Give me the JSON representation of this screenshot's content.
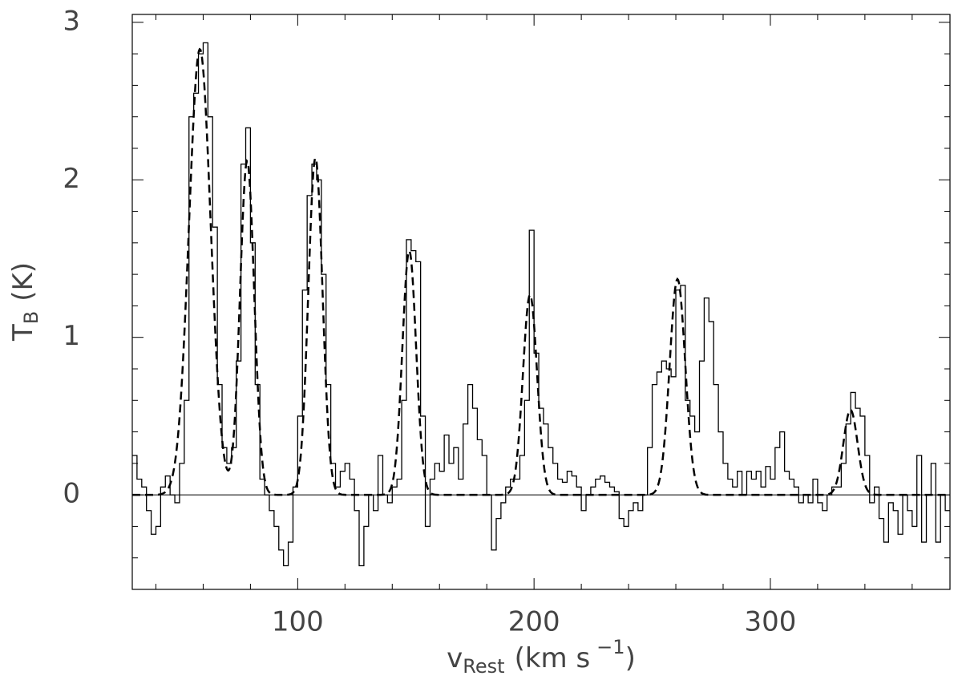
{
  "chart_data": {
    "type": "step",
    "color": "#000000",
    "xlabel": [
      "v",
      "Rest",
      "(km s",
      "−1",
      ")"
    ],
    "ylabel": [
      "T",
      "B",
      "(K)"
    ],
    "xlim": [
      30,
      376
    ],
    "ylim": [
      -0.6,
      3.05
    ],
    "xticks": [
      100,
      200,
      300
    ],
    "yticks": [
      0,
      1,
      2,
      3
    ],
    "xminorticks": [
      40,
      60,
      80,
      120,
      140,
      160,
      180,
      220,
      240,
      260,
      280,
      320,
      340,
      360
    ],
    "yminorticks": [
      -0.4,
      -0.2,
      0.2,
      0.4,
      0.6,
      0.8,
      1.2,
      1.4,
      1.6,
      1.8,
      2.2,
      2.4,
      2.6,
      2.8
    ],
    "x": [
      31,
      33,
      35,
      37,
      39,
      41,
      43,
      45,
      47,
      49,
      51,
      53,
      55,
      57,
      59,
      61,
      63,
      65,
      67,
      69,
      71,
      73,
      75,
      77,
      79,
      81,
      83,
      85,
      87,
      89,
      91,
      93,
      95,
      97,
      99,
      101,
      103,
      105,
      107,
      109,
      111,
      113,
      115,
      117,
      119,
      121,
      123,
      125,
      127,
      129,
      131,
      133,
      135,
      137,
      139,
      141,
      143,
      145,
      147,
      149,
      151,
      153,
      155,
      157,
      159,
      161,
      163,
      165,
      167,
      169,
      171,
      173,
      175,
      177,
      179,
      181,
      183,
      185,
      187,
      189,
      191,
      193,
      195,
      197,
      199,
      201,
      203,
      205,
      207,
      209,
      211,
      213,
      215,
      217,
      219,
      221,
      223,
      225,
      227,
      229,
      231,
      233,
      235,
      237,
      239,
      241,
      243,
      245,
      247,
      249,
      251,
      253,
      255,
      257,
      259,
      261,
      263,
      265,
      267,
      269,
      271,
      273,
      275,
      277,
      279,
      281,
      283,
      285,
      287,
      289,
      291,
      293,
      295,
      297,
      299,
      301,
      303,
      305,
      307,
      309,
      311,
      313,
      315,
      317,
      319,
      321,
      323,
      325,
      327,
      329,
      331,
      333,
      335,
      337,
      339,
      341,
      343,
      345,
      347,
      349,
      351,
      353,
      355,
      357,
      359,
      361,
      363,
      365,
      367,
      369,
      371,
      373,
      375
    ],
    "values": [
      0.25,
      0.1,
      0.05,
      -0.1,
      -0.25,
      -0.2,
      0.05,
      0.12,
      0.0,
      -0.05,
      0.2,
      0.6,
      2.4,
      2.55,
      2.8,
      2.87,
      2.4,
      1.7,
      0.7,
      0.3,
      0.2,
      0.3,
      0.85,
      2.1,
      2.33,
      1.6,
      0.7,
      0.1,
      0.0,
      -0.1,
      -0.2,
      -0.35,
      -0.45,
      -0.3,
      0.05,
      0.5,
      1.3,
      1.9,
      2.1,
      2.0,
      1.4,
      0.7,
      0.2,
      0.05,
      0.15,
      0.2,
      0.1,
      -0.1,
      -0.45,
      -0.2,
      0.0,
      -0.1,
      0.25,
      0.0,
      -0.05,
      0.05,
      0.1,
      0.6,
      1.62,
      1.55,
      1.48,
      0.5,
      -0.2,
      0.1,
      0.2,
      0.15,
      0.38,
      0.2,
      0.3,
      0.1,
      0.45,
      0.7,
      0.55,
      0.35,
      0.25,
      0.0,
      -0.35,
      -0.15,
      -0.05,
      0.05,
      0.1,
      0.1,
      0.25,
      0.6,
      1.68,
      0.9,
      0.55,
      0.45,
      0.3,
      0.2,
      0.1,
      0.08,
      0.15,
      0.12,
      0.05,
      -0.1,
      0.0,
      0.05,
      0.1,
      0.12,
      0.08,
      0.05,
      0.02,
      -0.15,
      -0.2,
      -0.1,
      -0.05,
      -0.1,
      0.0,
      0.3,
      0.7,
      0.78,
      0.85,
      0.8,
      0.75,
      1.3,
      1.33,
      0.6,
      0.5,
      0.4,
      0.85,
      1.25,
      1.1,
      0.7,
      0.4,
      0.2,
      0.1,
      0.05,
      0.15,
      0.0,
      0.15,
      0.1,
      0.15,
      0.05,
      0.18,
      0.1,
      0.3,
      0.4,
      0.15,
      0.1,
      0.05,
      -0.05,
      0.0,
      -0.05,
      0.1,
      -0.05,
      -0.1,
      0.0,
      0.05,
      0.05,
      0.2,
      0.45,
      0.65,
      0.55,
      0.5,
      0.25,
      -0.05,
      0.05,
      -0.15,
      -0.3,
      -0.05,
      -0.1,
      -0.25,
      0.0,
      -0.1,
      -0.2,
      0.25,
      -0.3,
      0.0,
      0.2,
      -0.3,
      0.0,
      -0.1
    ],
    "fit": {
      "color": "#000000",
      "centers": [
        58.6,
        78.6,
        107.5,
        147.2,
        198.3,
        260.7,
        333.9
      ],
      "amplitudes": [
        2.83,
        2.12,
        2.14,
        1.55,
        1.27,
        1.37,
        0.54
      ],
      "sigmas": [
        4.6,
        3.0,
        3.0,
        2.9,
        3.0,
        3.3,
        3.0
      ]
    }
  }
}
